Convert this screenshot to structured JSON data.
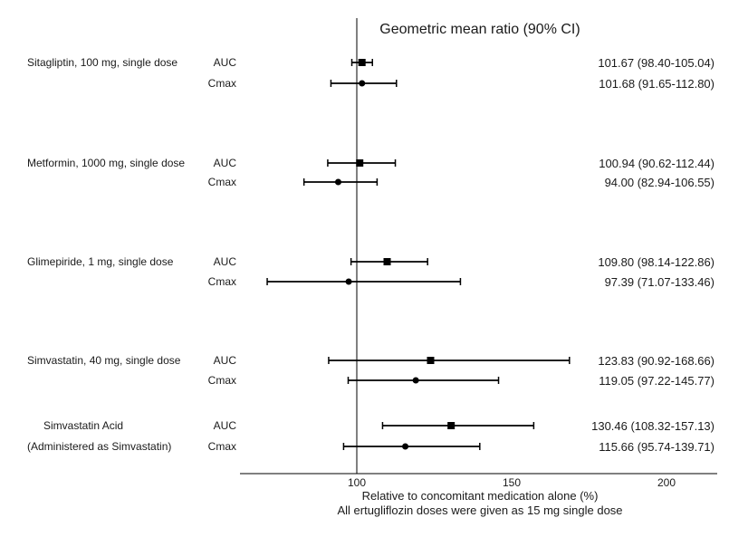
{
  "chart_data": {
    "type": "forest",
    "title": "Geometric mean ratio (90% CI)",
    "xlabel": "Relative to concomitant medication alone (%)",
    "footnote": "All ertugliflozin doses were given as 15 mg single dose",
    "xlim": [
      61,
      218
    ],
    "reference_line": 100,
    "xticks": [
      100,
      150,
      200
    ],
    "xtick_labels": [
      "100",
      "150",
      "200"
    ],
    "groups": [
      {
        "label": "Sitagliptin, 100 mg, single dose",
        "label2": "",
        "rows": [
          {
            "param": "AUC",
            "marker": "square",
            "gmr": 101.67,
            "lo": 98.4,
            "hi": 105.04,
            "text": "101.67 (98.40-105.04)"
          },
          {
            "param": "Cmax",
            "marker": "circle",
            "gmr": 101.68,
            "lo": 91.65,
            "hi": 112.8,
            "text": "101.68 (91.65-112.80)"
          }
        ]
      },
      {
        "label": "Metformin, 1000 mg, single dose",
        "label2": "",
        "rows": [
          {
            "param": "AUC",
            "marker": "square",
            "gmr": 100.94,
            "lo": 90.62,
            "hi": 112.44,
            "text": "100.94 (90.62-112.44)"
          },
          {
            "param": "Cmax",
            "marker": "circle",
            "gmr": 94.0,
            "lo": 82.94,
            "hi": 106.55,
            "text": "94.00 (82.94-106.55)"
          }
        ]
      },
      {
        "label": "Glimepiride, 1 mg, single dose",
        "label2": "",
        "rows": [
          {
            "param": "AUC",
            "marker": "square",
            "gmr": 109.8,
            "lo": 98.14,
            "hi": 122.86,
            "text": "109.80 (98.14-122.86)"
          },
          {
            "param": "Cmax",
            "marker": "circle",
            "gmr": 97.39,
            "lo": 71.07,
            "hi": 133.46,
            "text": "97.39 (71.07-133.46)"
          }
        ]
      },
      {
        "label": "Simvastatin, 40 mg, single dose",
        "label2": "",
        "rows": [
          {
            "param": "AUC",
            "marker": "square",
            "gmr": 123.83,
            "lo": 90.92,
            "hi": 168.66,
            "text": "123.83 (90.92-168.66)"
          },
          {
            "param": "Cmax",
            "marker": "circle",
            "gmr": 119.05,
            "lo": 97.22,
            "hi": 145.77,
            "text": "119.05 (97.22-145.77)"
          }
        ]
      },
      {
        "label": "Simvastatin Acid",
        "label2": "(Administered as Simvastatin)",
        "rows": [
          {
            "param": "AUC",
            "marker": "square",
            "gmr": 130.46,
            "lo": 108.32,
            "hi": 157.13,
            "text": "130.46 (108.32-157.13)"
          },
          {
            "param": "Cmax",
            "marker": "circle",
            "gmr": 115.66,
            "lo": 95.74,
            "hi": 139.71,
            "text": "115.66 (95.74-139.71)"
          }
        ]
      }
    ]
  }
}
